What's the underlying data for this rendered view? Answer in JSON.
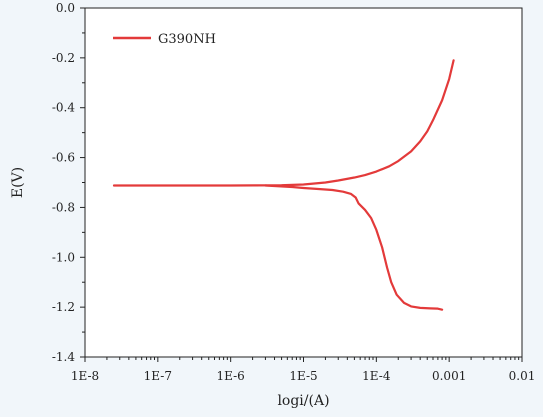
{
  "chart_data": {
    "type": "line",
    "xlabel": "logi/(A)",
    "ylabel": "E(V)",
    "x_scale": "log",
    "xlim": [
      1e-08,
      0.01
    ],
    "ylim": [
      -1.4,
      0.0
    ],
    "x_ticks": [
      "1E-8",
      "1E-7",
      "1E-6",
      "1E-5",
      "1E-4",
      "0.001",
      "0.01"
    ],
    "y_ticks": [
      "0.0",
      "-0.2",
      "-0.4",
      "-0.6",
      "-0.8",
      "-1.0",
      "-1.2",
      "-1.4"
    ],
    "grid": false,
    "legend_position": "top-left",
    "series": [
      {
        "name": "G390NH",
        "color": "#e33a3a",
        "anodic_branch": [
          [
            2.5e-08,
            -0.712
          ],
          [
            1e-07,
            -0.712
          ],
          [
            1e-06,
            -0.712
          ],
          [
            5e-06,
            -0.711
          ],
          [
            1e-05,
            -0.708
          ],
          [
            2e-05,
            -0.7
          ],
          [
            3e-05,
            -0.692
          ],
          [
            5e-05,
            -0.68
          ],
          [
            7e-05,
            -0.67
          ],
          [
            0.0001,
            -0.656
          ],
          [
            0.00015,
            -0.635
          ],
          [
            0.0002,
            -0.614
          ],
          [
            0.0003,
            -0.575
          ],
          [
            0.0004,
            -0.535
          ],
          [
            0.0005,
            -0.495
          ],
          [
            0.0006,
            -0.45
          ],
          [
            0.0008,
            -0.37
          ],
          [
            0.001,
            -0.285
          ],
          [
            0.00115,
            -0.21
          ]
        ],
        "cathodic_branch": [
          [
            3e-06,
            -0.712
          ],
          [
            7e-06,
            -0.718
          ],
          [
            1e-05,
            -0.722
          ],
          [
            1.6e-05,
            -0.726
          ],
          [
            2.5e-05,
            -0.73
          ],
          [
            3.5e-05,
            -0.737
          ],
          [
            4.5e-05,
            -0.746
          ],
          [
            5.2e-05,
            -0.76
          ],
          [
            5.7e-05,
            -0.784
          ],
          [
            7e-05,
            -0.81
          ],
          [
            8.5e-05,
            -0.843
          ],
          [
            0.0001,
            -0.89
          ],
          [
            0.00012,
            -0.96
          ],
          [
            0.00014,
            -1.04
          ],
          [
            0.00016,
            -1.1
          ],
          [
            0.00019,
            -1.15
          ],
          [
            0.00024,
            -1.183
          ],
          [
            0.0003,
            -1.197
          ],
          [
            0.0004,
            -1.203
          ],
          [
            0.00055,
            -1.205
          ],
          [
            0.0007,
            -1.206
          ],
          [
            0.0008,
            -1.21
          ]
        ]
      }
    ]
  }
}
